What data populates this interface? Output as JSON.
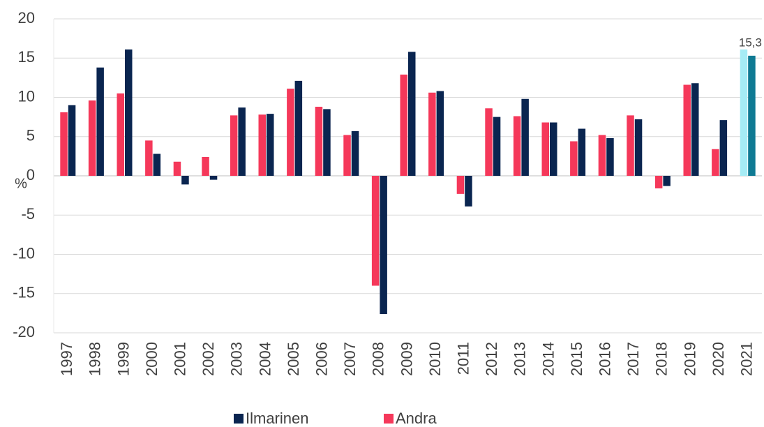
{
  "chart_data": {
    "type": "bar",
    "y_label": "%",
    "categories": [
      "1997",
      "1998",
      "1999",
      "2000",
      "2001",
      "2002",
      "2003",
      "2004",
      "2005",
      "2006",
      "2007",
      "2008",
      "2009",
      "2010",
      "2011",
      "2012",
      "2013",
      "2014",
      "2015",
      "2016",
      "2017",
      "2018",
      "2019",
      "2020",
      "2021"
    ],
    "series": [
      {
        "name": "Andra",
        "color": "#f5385a",
        "colors": [
          "#f5385a",
          "#f5385a",
          "#f5385a",
          "#f5385a",
          "#f5385a",
          "#f5385a",
          "#f5385a",
          "#f5385a",
          "#f5385a",
          "#f5385a",
          "#f5385a",
          "#f5385a",
          "#f5385a",
          "#f5385a",
          "#f5385a",
          "#f5385a",
          "#f5385a",
          "#f5385a",
          "#f5385a",
          "#f5385a",
          "#f5385a",
          "#f5385a",
          "#f5385a",
          "#f5385a",
          "#a6ecf5"
        ],
        "values": [
          8.1,
          9.6,
          10.5,
          4.5,
          1.8,
          2.4,
          7.7,
          7.8,
          11.1,
          8.8,
          5.2,
          -14.0,
          12.9,
          10.6,
          -2.3,
          8.6,
          7.6,
          6.8,
          4.4,
          5.2,
          7.7,
          -1.6,
          11.6,
          3.4,
          16.1
        ]
      },
      {
        "name": "Ilmarinen",
        "color": "#0a2550",
        "colors": [
          "#0a2550",
          "#0a2550",
          "#0a2550",
          "#0a2550",
          "#0a2550",
          "#0a2550",
          "#0a2550",
          "#0a2550",
          "#0a2550",
          "#0a2550",
          "#0a2550",
          "#0a2550",
          "#0a2550",
          "#0a2550",
          "#0a2550",
          "#0a2550",
          "#0a2550",
          "#0a2550",
          "#0a2550",
          "#0a2550",
          "#0a2550",
          "#0a2550",
          "#0a2550",
          "#0a2550",
          "#0f7a93"
        ],
        "values": [
          9.0,
          13.8,
          16.1,
          2.8,
          -1.1,
          -0.5,
          8.7,
          7.9,
          12.1,
          8.5,
          5.7,
          -17.6,
          15.8,
          10.8,
          -3.9,
          7.5,
          9.8,
          6.8,
          6.0,
          4.8,
          7.2,
          -1.3,
          11.8,
          7.1,
          15.3
        ],
        "value_labels": [
          null,
          null,
          null,
          null,
          null,
          null,
          null,
          null,
          null,
          null,
          null,
          null,
          null,
          null,
          null,
          null,
          null,
          null,
          null,
          null,
          null,
          null,
          null,
          null,
          "15,3"
        ]
      }
    ],
    "ylim": [
      -20,
      20
    ],
    "yticks": [
      -20,
      -15,
      -10,
      -5,
      0,
      5,
      10,
      15,
      20
    ],
    "grid": true,
    "legend": "bottom"
  }
}
